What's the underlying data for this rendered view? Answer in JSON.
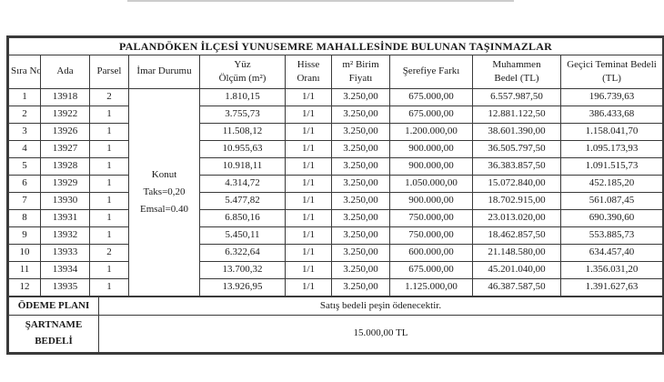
{
  "title": "PALANDÖKEN İLÇESİ YUNUSEMRE MAHALLESİNDE BULUNAN TAŞINMAZLAR",
  "header": {
    "sira_no": "Sıra No",
    "ada": "Ada",
    "parsel": "Parsel",
    "imar_durumu": "İmar Durumu",
    "yuz_olcum_line1": "Yüz",
    "yuz_olcum_line2": "Ölçüm (m²)",
    "hisse_line1": "Hisse",
    "hisse_line2": "Oranı",
    "birim_line1": "m² Birim",
    "birim_line2": "Fiyatı",
    "serefiye": "Şerefiye Farkı",
    "muhammen_line1": "Muhammen",
    "muhammen_line2": "Bedel (TL)",
    "teminat_line1": "Geçici Teminat Bedeli",
    "teminat_line2": "(TL)"
  },
  "imar_durumu": {
    "lines": [
      "Konut",
      "Taks=0,20",
      "Emsal=0.40"
    ]
  },
  "rows": [
    {
      "sira_no": "1",
      "ada": "13918",
      "parsel": "2",
      "yuz_olcum": "1.810,15",
      "hisse_orani": "1/1",
      "m2_birim_fiyati": "3.250,00",
      "serefiye_farki": "675.000,00",
      "muhammen_bedel": "6.557.987,50",
      "gecici_teminat": "196.739,63"
    },
    {
      "sira_no": "2",
      "ada": "13922",
      "parsel": "1",
      "yuz_olcum": "3.755,73",
      "hisse_orani": "1/1",
      "m2_birim_fiyati": "3.250,00",
      "serefiye_farki": "675.000,00",
      "muhammen_bedel": "12.881.122,50",
      "gecici_teminat": "386.433,68"
    },
    {
      "sira_no": "3",
      "ada": "13926",
      "parsel": "1",
      "yuz_olcum": "11.508,12",
      "hisse_orani": "1/1",
      "m2_birim_fiyati": "3.250,00",
      "serefiye_farki": "1.200.000,00",
      "muhammen_bedel": "38.601.390,00",
      "gecici_teminat": "1.158.041,70"
    },
    {
      "sira_no": "4",
      "ada": "13927",
      "parsel": "1",
      "yuz_olcum": "10.955,63",
      "hisse_orani": "1/1",
      "m2_birim_fiyati": "3.250,00",
      "serefiye_farki": "900.000,00",
      "muhammen_bedel": "36.505.797,50",
      "gecici_teminat": "1.095.173,93"
    },
    {
      "sira_no": "5",
      "ada": "13928",
      "parsel": "1",
      "yuz_olcum": "10.918,11",
      "hisse_orani": "1/1",
      "m2_birim_fiyati": "3.250,00",
      "serefiye_farki": "900.000,00",
      "muhammen_bedel": "36.383.857,50",
      "gecici_teminat": "1.091.515,73"
    },
    {
      "sira_no": "6",
      "ada": "13929",
      "parsel": "1",
      "yuz_olcum": "4.314,72",
      "hisse_orani": "1/1",
      "m2_birim_fiyati": "3.250,00",
      "serefiye_farki": "1.050.000,00",
      "muhammen_bedel": "15.072.840,00",
      "gecici_teminat": "452.185,20"
    },
    {
      "sira_no": "7",
      "ada": "13930",
      "parsel": "1",
      "yuz_olcum": "5.477,82",
      "hisse_orani": "1/1",
      "m2_birim_fiyati": "3.250,00",
      "serefiye_farki": "900.000,00",
      "muhammen_bedel": "18.702.915,00",
      "gecici_teminat": "561.087,45"
    },
    {
      "sira_no": "8",
      "ada": "13931",
      "parsel": "1",
      "yuz_olcum": "6.850,16",
      "hisse_orani": "1/1",
      "m2_birim_fiyati": "3.250,00",
      "serefiye_farki": "750.000,00",
      "muhammen_bedel": "23.013.020,00",
      "gecici_teminat": "690.390,60"
    },
    {
      "sira_no": "9",
      "ada": "13932",
      "parsel": "1",
      "yuz_olcum": "5.450,11",
      "hisse_orani": "1/1",
      "m2_birim_fiyati": "3.250,00",
      "serefiye_farki": "750.000,00",
      "muhammen_bedel": "18.462.857,50",
      "gecici_teminat": "553.885,73"
    },
    {
      "sira_no": "10",
      "ada": "13933",
      "parsel": "2",
      "yuz_olcum": "6.322,64",
      "hisse_orani": "1/1",
      "m2_birim_fiyati": "3.250,00",
      "serefiye_farki": "600.000,00",
      "muhammen_bedel": "21.148.580,00",
      "gecici_teminat": "634.457,40"
    },
    {
      "sira_no": "11",
      "ada": "13934",
      "parsel": "1",
      "yuz_olcum": "13.700,32",
      "hisse_orani": "1/1",
      "m2_birim_fiyati": "3.250,00",
      "serefiye_farki": "675.000,00",
      "muhammen_bedel": "45.201.040,00",
      "gecici_teminat": "1.356.031,20"
    },
    {
      "sira_no": "12",
      "ada": "13935",
      "parsel": "1",
      "yuz_olcum": "13.926,95",
      "hisse_orani": "1/1",
      "m2_birim_fiyati": "3.250,00",
      "serefiye_farki": "1.125.000,00",
      "muhammen_bedel": "46.387.587,50",
      "gecici_teminat": "1.391.627,63"
    }
  ],
  "footer": {
    "odeme_plani_label": "ÖDEME PLANI",
    "odeme_plani_value": "Satış bedeli peşin ödenecektir.",
    "sartname_label_line1": "ŞARTNAME",
    "sartname_label_line2": "BEDELİ",
    "sartname_value": "15.000,00 TL"
  }
}
